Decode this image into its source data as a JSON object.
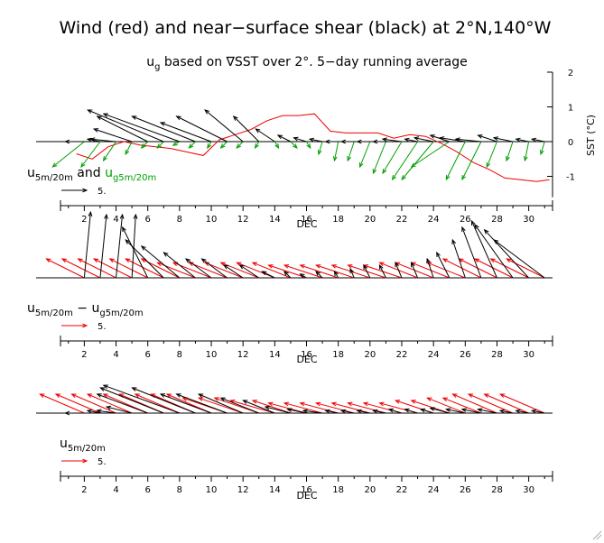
{
  "title": "Wind (red) and near−surface shear (black) at 2°N,140°W",
  "subtitle_prefix": "u",
  "subtitle_sub": "g",
  "subtitle_rest": " based on ∇SST over 2°. 5−day running average",
  "colors": {
    "wind": "#ee0000",
    "shear": "#000000",
    "geo": "#00a000",
    "sst": "#ee0000"
  },
  "panels": [
    {
      "legend_main": "u",
      "legend_main_sub": "5m/20m",
      "legend_and": " and ",
      "legend_second": "u",
      "legend_second_sub": "g5m/20m",
      "key_value": "5.",
      "xlabel": "DEC"
    },
    {
      "legend_main": "u",
      "legend_main_sub": "5m/20m",
      "legend_minus": " − ",
      "legend_second": "u",
      "legend_second_sub": "g5m/20m",
      "key_value": "5.",
      "xlabel": "DEC"
    },
    {
      "legend_main": "u",
      "legend_main_sub": "5m/20m",
      "key_value": "5.",
      "xlabel": "DEC"
    }
  ],
  "chart_data": [
    {
      "type": "line",
      "title": "u5m/20m and ug5m/20m",
      "x_name": "DEC",
      "xlim": [
        0.5,
        31.5
      ],
      "x_ticks": [
        2,
        4,
        6,
        8,
        10,
        12,
        14,
        16,
        18,
        20,
        22,
        24,
        26,
        28,
        30
      ],
      "y2_label": "SST (°C)",
      "y2_ticks": [
        2,
        1,
        0,
        -1
      ],
      "y2lim": [
        -1.6,
        2
      ],
      "sst_anomaly": {
        "days": [
          1.5,
          2.5,
          3.5,
          4.5,
          5.5,
          6.5,
          7.5,
          8.5,
          9.5,
          10.5,
          11.5,
          12.5,
          13.5,
          14.5,
          15.5,
          16.5,
          17.5,
          18.5,
          19.5,
          20.5,
          21.5,
          22.5,
          23.5,
          24.5,
          25.5,
          26.5,
          27.5,
          28.5,
          29.5,
          30.5,
          31.3
        ],
        "values": [
          -0.35,
          -0.5,
          -0.15,
          0,
          -0.1,
          -0.15,
          -0.2,
          -0.3,
          -0.4,
          0.05,
          0.2,
          0.35,
          0.6,
          0.75,
          0.75,
          0.8,
          0.3,
          0.25,
          0.25,
          0.25,
          0.1,
          0.2,
          0.15,
          -0.05,
          -0.3,
          -0.6,
          -0.8,
          -1.05,
          -1.1,
          -1.15,
          -1.1
        ]
      },
      "shear_vectors": {
        "days": [
          2,
          3,
          4,
          5,
          6,
          7,
          8,
          9,
          10,
          11,
          12,
          13,
          14,
          15,
          16,
          17,
          18,
          19,
          20,
          21,
          22,
          23,
          24,
          25,
          26,
          27,
          28,
          29,
          30,
          31
        ],
        "u": [
          -1.5,
          -1,
          -2,
          -3,
          -4,
          -6,
          -6,
          -5,
          -4,
          -4,
          -3,
          -2,
          -1.5,
          -1,
          -1,
          -1,
          -1,
          -1,
          -1,
          -1,
          -1.5,
          -1,
          -1.5,
          -1.5,
          -2,
          -2,
          -1.5,
          -1.5,
          -1,
          -1
        ],
        "v": [
          0,
          0.2,
          0.2,
          1,
          2,
          2.5,
          2.2,
          2,
          1.5,
          2,
          2.5,
          2,
          1,
          0.5,
          0.3,
          0.2,
          0,
          0,
          0,
          0,
          0.2,
          0.2,
          0.3,
          0.5,
          0.3,
          0.2,
          0.5,
          0.3,
          0.2,
          0.2
        ]
      },
      "geostrophic_vectors": {
        "days": [
          2,
          3,
          4,
          5,
          6,
          7,
          8,
          9,
          10,
          11,
          12,
          13,
          14,
          15,
          16,
          17,
          18,
          19,
          20,
          21,
          22,
          23,
          24,
          25,
          26,
          27,
          28,
          29,
          30,
          31
        ],
        "u": [
          -2.5,
          -1.5,
          -1,
          -0.5,
          -0.5,
          -0.5,
          -0.5,
          -0.5,
          -0.3,
          -0.5,
          -0.5,
          -0.3,
          0.3,
          0.5,
          0.3,
          -0.3,
          -0.3,
          -0.5,
          -0.8,
          -1,
          -1.5,
          -2,
          -2.5,
          -3,
          -1.5,
          -1.5,
          -0.8,
          -0.5,
          -0.3,
          -0.3
        ],
        "v": [
          -2,
          -2,
          -1.5,
          -1,
          -0.5,
          -0.5,
          -0.3,
          -0.5,
          -0.5,
          -0.5,
          -0.5,
          -0.5,
          -0.5,
          -0.5,
          -0.5,
          -1,
          -1.5,
          -1.5,
          -2,
          -2.5,
          -2.5,
          -3,
          -3,
          -2,
          -3,
          -3,
          -2,
          -1.5,
          -1.5,
          -1
        ]
      }
    },
    {
      "type": "line",
      "title": "u5m/20m − ug5m/20m",
      "x_name": "DEC",
      "xlim": [
        0.5,
        31.5
      ],
      "x_ticks": [
        2,
        4,
        6,
        8,
        10,
        12,
        14,
        16,
        18,
        20,
        22,
        24,
        26,
        28,
        30
      ],
      "shear_vectors": {
        "days": [
          2,
          3,
          4,
          5,
          6,
          7,
          8,
          9,
          10,
          11,
          12,
          13,
          14,
          15,
          16,
          17,
          18,
          19,
          20,
          21,
          22,
          23,
          24,
          25,
          26,
          27,
          28,
          29,
          30,
          31
        ],
        "u": [
          0.5,
          0.5,
          0.5,
          0.3,
          -2,
          -3,
          -3,
          -2.5,
          -2,
          -2,
          -1.5,
          -1.5,
          -1,
          -0.5,
          -0.5,
          -0.5,
          -0.3,
          -0.3,
          -0.5,
          -0.5,
          -0.5,
          -0.5,
          -0.5,
          -1,
          -1,
          -1.5,
          -2,
          -3,
          -3.5,
          -4
        ],
        "v": [
          5.2,
          5,
          5,
          5,
          4,
          3,
          2.5,
          2,
          1.5,
          1.5,
          1,
          1,
          0.5,
          0.5,
          0.3,
          0.5,
          0.5,
          0.7,
          1,
          1,
          1.2,
          1.2,
          1.5,
          2,
          3,
          4,
          4.5,
          4.2,
          3.8,
          3
        ]
      },
      "wind_vectors": {
        "days": [
          2,
          3,
          4,
          5,
          6,
          7,
          8,
          9,
          10,
          11,
          12,
          13,
          14,
          15,
          16,
          17,
          18,
          19,
          20,
          21,
          22,
          23,
          24,
          25,
          26,
          27,
          28,
          29,
          30,
          31
        ],
        "u": [
          -3,
          -3,
          -3,
          -3,
          -3,
          -3,
          -3,
          -3,
          -3,
          -3,
          -3,
          -3,
          -3,
          -3,
          -3,
          -3,
          -3,
          -3,
          -3,
          -3,
          -3,
          -3,
          -3,
          -3,
          -3,
          -3,
          -3,
          -3,
          -3,
          -3
        ],
        "v": [
          1.5,
          1.5,
          1.5,
          1.5,
          1.5,
          1.5,
          1.5,
          1.2,
          1.2,
          1.2,
          1.2,
          1.2,
          1.2,
          1.2,
          1,
          1,
          1,
          1,
          1,
          1,
          1,
          1.2,
          1.2,
          1.2,
          1.2,
          1.5,
          1.5,
          1.5,
          1.5,
          1.5
        ]
      }
    },
    {
      "type": "line",
      "title": "u5m/20m",
      "x_name": "DEC",
      "xlim": [
        0.5,
        31.5
      ],
      "x_ticks": [
        2,
        4,
        6,
        8,
        10,
        12,
        14,
        16,
        18,
        20,
        22,
        24,
        26,
        28,
        30
      ],
      "shear_vectors": {
        "days": [
          2,
          3,
          4,
          5,
          6,
          7,
          8,
          9,
          10,
          11,
          12,
          13,
          14,
          15,
          16,
          17,
          18,
          19,
          20,
          21,
          22,
          23,
          24,
          25,
          26,
          27,
          28,
          29,
          30,
          31
        ],
        "u": [
          -1.5,
          -1,
          -1.5,
          -2,
          -4,
          -5,
          -6,
          -5,
          -4,
          -4,
          -3.5,
          -3,
          -2.5,
          -2,
          -1.5,
          -1.5,
          -1,
          -1,
          -1,
          -1,
          -1,
          -1,
          -1,
          -1.5,
          -1.5,
          -1.5,
          -1.5,
          -1,
          -1,
          -1
        ],
        "v": [
          0,
          0.2,
          0.2,
          0.5,
          1.5,
          2,
          2.2,
          2,
          1.5,
          1.5,
          1.5,
          1.2,
          1,
          0.5,
          0.3,
          0.2,
          0.2,
          0.2,
          0.2,
          0.2,
          0.3,
          0.3,
          0.3,
          0.4,
          0.3,
          0.3,
          0.3,
          0.2,
          0.2,
          0.2
        ]
      },
      "wind_vectors": {
        "days": [
          2,
          3,
          4,
          5,
          6,
          7,
          8,
          9,
          10,
          11,
          12,
          13,
          14,
          15,
          16,
          17,
          18,
          19,
          20,
          21,
          22,
          23,
          24,
          25,
          26,
          27,
          28,
          29,
          30,
          31
        ],
        "u": [
          -3.5,
          -3.5,
          -3.5,
          -3.5,
          -3.5,
          -3.5,
          -3.5,
          -3.5,
          -3.5,
          -3.5,
          -3.5,
          -3.5,
          -3.5,
          -3,
          -3,
          -3,
          -3,
          -3,
          -3,
          -3,
          -3,
          -3,
          -3,
          -3,
          -3,
          -3,
          -3.5,
          -3.5,
          -3.5,
          -3.5
        ],
        "v": [
          1.5,
          1.5,
          1.5,
          1.5,
          1.5,
          1.5,
          1.5,
          1.5,
          1.5,
          1.2,
          1.2,
          1.2,
          1,
          1,
          0.8,
          0.8,
          0.8,
          0.8,
          0.8,
          0.8,
          0.8,
          0.8,
          1,
          1,
          1.2,
          1.2,
          1.5,
          1.5,
          1.5,
          1.5
        ]
      }
    }
  ]
}
